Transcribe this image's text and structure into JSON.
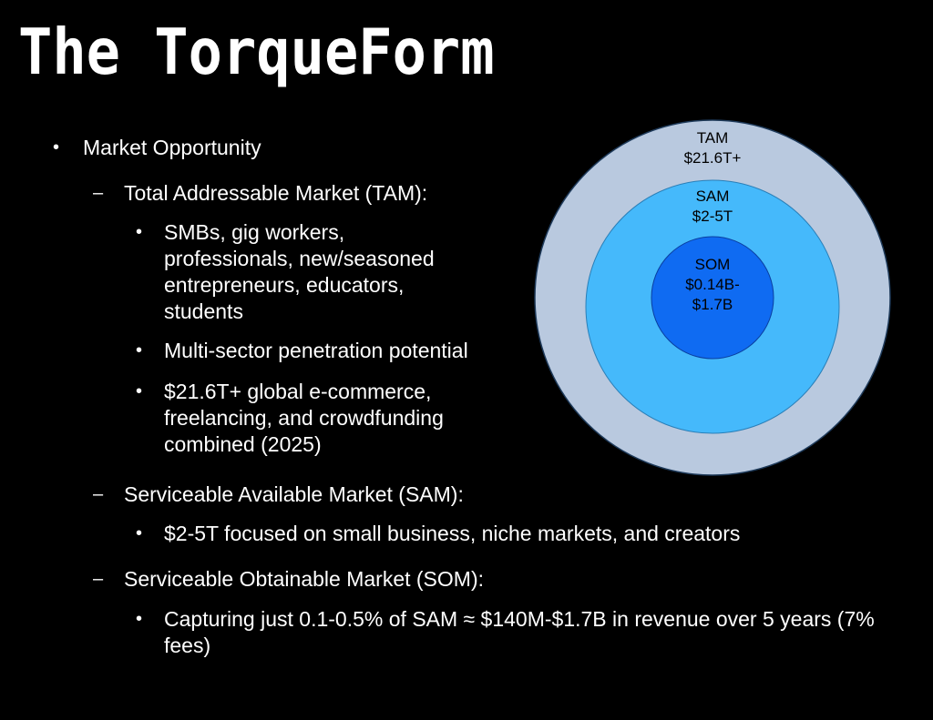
{
  "title": "The TorqueForm",
  "bullets": {
    "market_opportunity": "Market Opportunity",
    "tam_heading": "Total Addressable Market (TAM):",
    "tam_items": [
      "SMBs, gig workers, professionals, new/seasoned entrepreneurs, educators, students",
      "Multi-sector penetration potential",
      "$21.6T+ global e-commerce, freelancing, and crowdfunding combined (2025)"
    ],
    "sam_heading": "Serviceable Available Market (SAM):",
    "sam_items": [
      "$2-5T focused on small business, niche markets, and creators"
    ],
    "som_heading": "Serviceable Obtainable Market (SOM):",
    "som_items": [
      "Capturing just 0.1-0.5% of SAM ≈ $140M-$1.7B in revenue over 5 years (7% fees)"
    ]
  },
  "markers": {
    "bullet": "•",
    "dash": "–"
  },
  "diagram": {
    "tam": {
      "label": "TAM",
      "value": "$21.6T+",
      "color": "#b9c9df"
    },
    "sam": {
      "label": "SAM",
      "value": "$2-5T",
      "color": "#45b9fb"
    },
    "som": {
      "label": "SOM",
      "value_line1": "$0.14B-",
      "value_line2": "$1.7B",
      "color": "#0f6bf2"
    }
  }
}
